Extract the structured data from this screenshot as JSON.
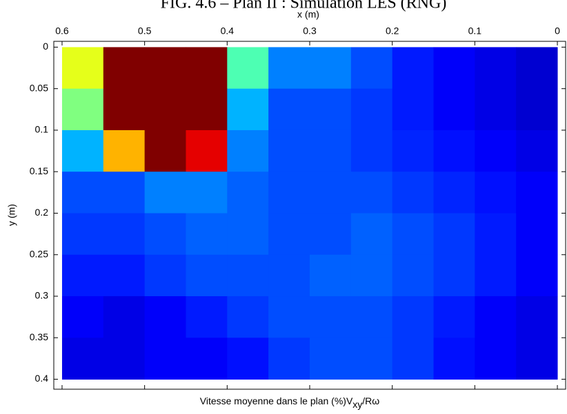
{
  "chart_data": {
    "type": "heatmap",
    "title": "FIG. 4.6 – Plan II : Simulation LES (RNG)",
    "xlabel": "x (m)",
    "ylabel": "y (m)",
    "caption": [
      "Vitesse moyenne dans le plan (%)V",
      "xy",
      "/Rω"
    ],
    "x": [
      0.575,
      0.525,
      0.475,
      0.425,
      0.375,
      0.325,
      0.275,
      0.225,
      0.175,
      0.125,
      0.075,
      0.025
    ],
    "y": [
      0.025,
      0.075,
      0.125,
      0.175,
      0.225,
      0.275,
      0.325,
      0.375
    ],
    "cell": [
      0.05,
      0.05
    ],
    "values": [
      [
        60,
        100,
        100,
        100,
        45,
        25,
        25,
        20,
        15,
        12,
        10,
        8
      ],
      [
        50,
        100,
        100,
        100,
        30,
        20,
        20,
        18,
        15,
        12,
        10,
        8
      ],
      [
        30,
        70,
        100,
        90,
        25,
        20,
        20,
        18,
        16,
        14,
        12,
        10
      ],
      [
        20,
        20,
        25,
        25,
        22,
        20,
        20,
        20,
        18,
        16,
        14,
        12
      ],
      [
        18,
        18,
        20,
        22,
        22,
        20,
        20,
        22,
        20,
        18,
        15,
        12
      ],
      [
        15,
        15,
        18,
        20,
        20,
        20,
        22,
        22,
        20,
        18,
        15,
        12
      ],
      [
        12,
        10,
        12,
        15,
        18,
        20,
        20,
        20,
        18,
        15,
        12,
        10
      ],
      [
        10,
        10,
        12,
        12,
        14,
        18,
        20,
        20,
        18,
        14,
        12,
        10
      ]
    ],
    "clim": [
      0,
      100
    ],
    "colormap": "jet",
    "xlim": [
      0.61,
      -0.01
    ],
    "ylim": [
      -0.007,
      0.412
    ],
    "xticks": [
      0.6,
      0.5,
      0.4,
      0.3,
      0.2,
      0.1,
      0
    ],
    "yticks": [
      0,
      0.05,
      0.1,
      0.15,
      0.2,
      0.25,
      0.3,
      0.35,
      0.4
    ]
  }
}
